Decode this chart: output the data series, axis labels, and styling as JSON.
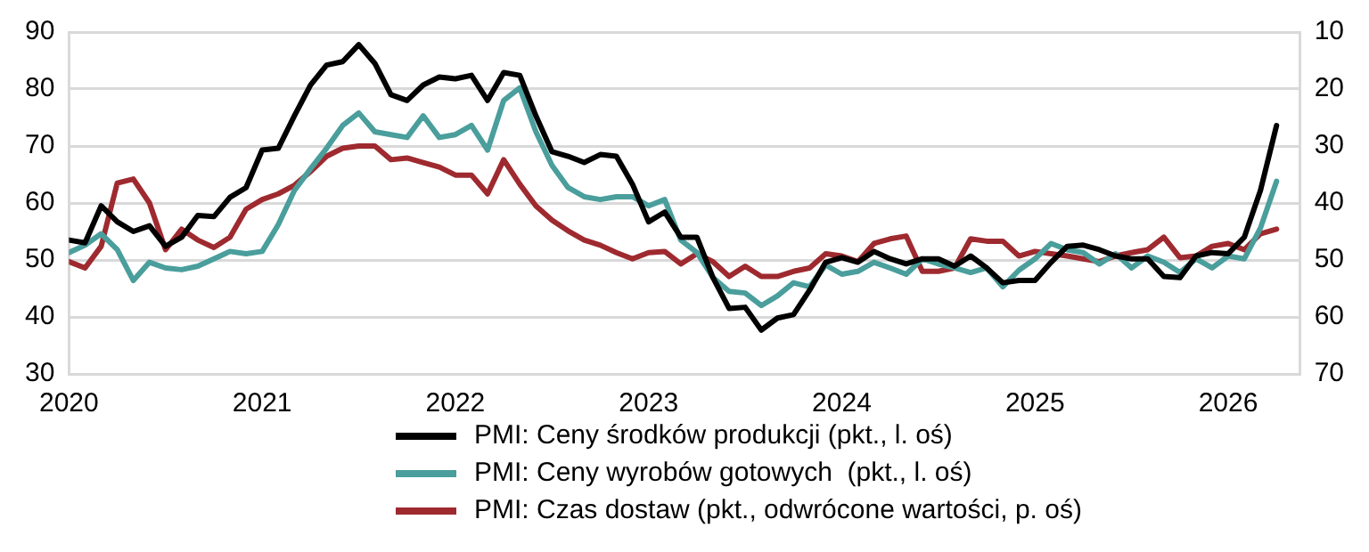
{
  "chart_data": {
    "type": "line",
    "x": [
      "2020-01",
      "2020-02",
      "2020-03",
      "2020-04",
      "2020-05",
      "2020-06",
      "2020-07",
      "2020-08",
      "2020-09",
      "2020-10",
      "2020-11",
      "2020-12",
      "2021-01",
      "2021-02",
      "2021-03",
      "2021-04",
      "2021-05",
      "2021-06",
      "2021-07",
      "2021-08",
      "2021-09",
      "2021-10",
      "2021-11",
      "2021-12",
      "2022-01",
      "2022-02",
      "2022-03",
      "2022-04",
      "2022-05",
      "2022-06",
      "2022-07",
      "2022-08",
      "2022-09",
      "2022-10",
      "2022-11",
      "2022-12",
      "2023-01",
      "2023-02",
      "2023-03",
      "2023-04",
      "2023-05",
      "2023-06",
      "2023-07",
      "2023-08",
      "2023-09",
      "2023-10",
      "2023-11",
      "2023-12",
      "2024-01",
      "2024-02",
      "2024-03",
      "2024-04",
      "2024-05",
      "2024-06",
      "2024-07",
      "2024-08",
      "2024-09",
      "2024-10",
      "2024-11",
      "2024-12",
      "2025-01",
      "2025-02",
      "2025-03",
      "2025-04",
      "2025-05",
      "2025-06",
      "2025-07",
      "2025-08",
      "2025-09",
      "2025-10",
      "2025-11",
      "2025-12",
      "2026-01",
      "2026-02",
      "2026-03",
      "2026-04"
    ],
    "series": [
      {
        "name": "PMI: Ceny środków produkcji (pkt., l. oś)",
        "color": "#000000",
        "values": [
          53.5,
          53,
          59.5,
          56.7,
          55,
          56,
          52.4,
          54,
          57.8,
          57.6,
          61,
          62.7,
          69.3,
          69.6,
          75.3,
          80.7,
          84.2,
          84.8,
          87.8,
          84.5,
          79,
          78,
          80.7,
          82.1,
          81.8,
          82.4,
          78,
          82.9,
          82.4,
          75.3,
          69,
          68.2,
          67.1,
          68.5,
          68.2,
          63.3,
          56.7,
          58.4,
          54,
          54,
          46.9,
          41.5,
          41.7,
          37.7,
          39.8,
          40.4,
          44.7,
          49.6,
          50.4,
          49.6,
          51.5,
          50.2,
          49.3,
          50.2,
          50.2,
          48.9,
          50.7,
          48.6,
          46,
          46.4,
          46.4,
          49.6,
          52.4,
          52.6,
          51.8,
          50.7,
          50.2,
          50.2,
          47.1,
          46.9,
          50.7,
          51.3,
          51.1,
          54,
          62.2,
          73.6
        ]
      },
      {
        "name": "PMI: Ceny wyrobów gotowych  (pkt., l. oś)",
        "color": "#4a9e9c",
        "values": [
          51.3,
          52.6,
          54.6,
          51.8,
          46.4,
          49.6,
          48.6,
          48.3,
          48.9,
          50.2,
          51.5,
          51.1,
          51.5,
          56.2,
          62.2,
          66,
          69.6,
          73.6,
          75.8,
          72.5,
          72,
          71.5,
          75.3,
          71.5,
          72,
          73.6,
          69.3,
          78,
          80.2,
          72.5,
          66.6,
          62.7,
          61.1,
          60.6,
          61.1,
          61.1,
          59.5,
          60.6,
          53.5,
          51.3,
          46.9,
          44.5,
          44.2,
          42,
          43.7,
          46,
          45.3,
          49.1,
          47.5,
          48,
          49.6,
          48.6,
          47.5,
          50.2,
          49.3,
          48.6,
          47.8,
          48.6,
          45.3,
          48.2,
          50.2,
          52.9,
          51.8,
          51.3,
          49.3,
          51.1,
          48.6,
          50.7,
          49.6,
          47.8,
          50.2,
          48.6,
          50.7,
          50.2,
          55.6,
          63.8
        ]
      },
      {
        "name": "PMI: Czas dostaw (pkt., odwrócone wartości, p. oś)",
        "color": "#9e2a2f",
        "axis": "y2",
        "values": [
          50.3,
          51.4,
          47.6,
          36.5,
          35.8,
          40,
          48.2,
          44.6,
          46.5,
          47.8,
          46,
          41.1,
          39.4,
          38.4,
          36.9,
          34.5,
          31.8,
          30.4,
          30,
          30,
          32.4,
          32.1,
          32.9,
          33.7,
          35.1,
          35.1,
          38.4,
          32.4,
          36.7,
          40.5,
          43,
          44.9,
          46.5,
          47.4,
          48.7,
          49.8,
          48.7,
          48.5,
          50.7,
          48.9,
          50.3,
          52.9,
          51.1,
          52.9,
          52.9,
          52,
          51.4,
          48.9,
          49.3,
          50.3,
          47.1,
          46.3,
          45.8,
          52,
          52,
          51.4,
          46.3,
          46.7,
          46.7,
          49.3,
          48.5,
          48.9,
          49.3,
          49.8,
          50.3,
          49.3,
          48.7,
          48.2,
          46,
          49.6,
          49.3,
          47.6,
          47.1,
          48.2,
          45.4,
          44.6
        ]
      }
    ],
    "xlim": [
      "2020-01",
      "2026-05-15"
    ],
    "xticks": [
      "2020",
      "2021",
      "2022",
      "2023",
      "2024",
      "2025",
      "2026"
    ],
    "ylim": [
      30,
      90
    ],
    "yticks": [
      30,
      40,
      50,
      60,
      70,
      80,
      90
    ],
    "y2lim": [
      70,
      10
    ],
    "y2ticks": [
      10,
      20,
      30,
      40,
      50,
      60,
      70
    ],
    "grid": "y",
    "legend": "bottom",
    "marker": "none",
    "line_style": "solid"
  }
}
